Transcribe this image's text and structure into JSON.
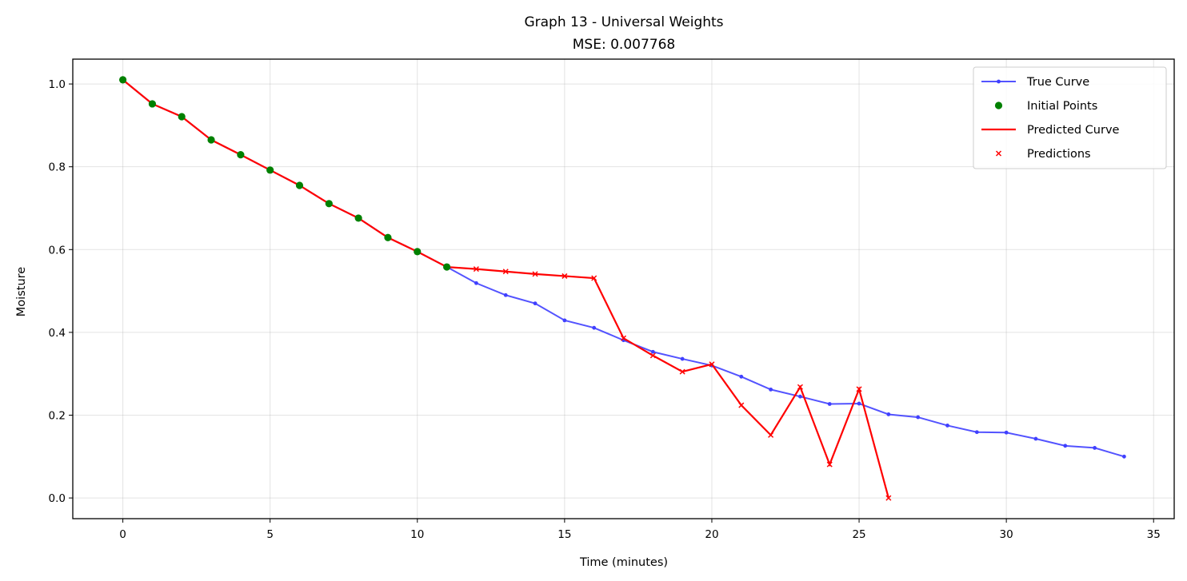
{
  "chart_data": {
    "type": "line",
    "title": "Graph 13 - Universal Weights",
    "subtitle": "MSE: 0.007768",
    "xlabel": "Time (minutes)",
    "ylabel": "Moisture",
    "xlim": [
      -1.7,
      35.7
    ],
    "ylim": [
      -0.05,
      1.06
    ],
    "xticks": [
      0,
      5,
      10,
      15,
      20,
      25,
      30,
      35
    ],
    "xtick_labels": [
      "0",
      "5",
      "10",
      "15",
      "20",
      "25",
      "30",
      "35"
    ],
    "yticks": [
      0.0,
      0.2,
      0.4,
      0.6,
      0.8,
      1.0
    ],
    "ytick_labels": [
      "0.0",
      "0.2",
      "0.4",
      "0.6",
      "0.8",
      "1.0"
    ],
    "grid": true,
    "legend_position": "top-right",
    "series": [
      {
        "name": "True Curve",
        "color": "#4040ff",
        "marker": "dot",
        "x": [
          0,
          1,
          2,
          3,
          4,
          5,
          6,
          7,
          8,
          9,
          10,
          11,
          12,
          13,
          14,
          15,
          16,
          17,
          18,
          19,
          20,
          21,
          22,
          23,
          24,
          25,
          26,
          27,
          28,
          29,
          30,
          31,
          32,
          33,
          34
        ],
        "y": [
          1.01,
          0.952,
          0.921,
          0.865,
          0.829,
          0.792,
          0.755,
          0.711,
          0.676,
          0.629,
          0.595,
          0.558,
          0.519,
          0.49,
          0.47,
          0.429,
          0.411,
          0.381,
          0.353,
          0.336,
          0.32,
          0.293,
          0.262,
          0.245,
          0.227,
          0.228,
          0.202,
          0.195,
          0.175,
          0.159,
          0.158,
          0.143,
          0.126,
          0.121,
          0.1
        ]
      },
      {
        "name": "Initial Points",
        "color": "#008000",
        "marker": "circle",
        "x": [
          0,
          1,
          2,
          3,
          4,
          5,
          6,
          7,
          8,
          9,
          10,
          11
        ],
        "y": [
          1.01,
          0.952,
          0.921,
          0.865,
          0.829,
          0.792,
          0.755,
          0.711,
          0.676,
          0.629,
          0.595,
          0.558
        ]
      },
      {
        "name": "Predicted Curve",
        "color": "#ff0000",
        "marker": "none",
        "x": [
          0,
          1,
          2,
          3,
          4,
          5,
          6,
          7,
          8,
          9,
          10,
          11,
          12,
          13,
          14,
          15,
          16,
          17,
          18,
          19,
          20,
          21,
          22,
          23,
          24,
          25,
          26
        ],
        "y": [
          1.01,
          0.952,
          0.921,
          0.865,
          0.829,
          0.792,
          0.755,
          0.711,
          0.676,
          0.629,
          0.595,
          0.558,
          0.553,
          0.547,
          0.541,
          0.536,
          0.531,
          0.386,
          0.344,
          0.305,
          0.323,
          0.224,
          0.152,
          0.268,
          0.081,
          0.263,
          0.0
        ]
      },
      {
        "name": "Predictions",
        "color": "#ff0000",
        "marker": "x",
        "x": [
          12,
          13,
          14,
          15,
          16,
          17,
          18,
          19,
          20,
          21,
          22,
          23,
          24,
          25,
          26
        ],
        "y": [
          0.553,
          0.547,
          0.541,
          0.536,
          0.531,
          0.386,
          0.344,
          0.305,
          0.323,
          0.224,
          0.152,
          0.268,
          0.081,
          0.263,
          0.0
        ]
      }
    ]
  }
}
